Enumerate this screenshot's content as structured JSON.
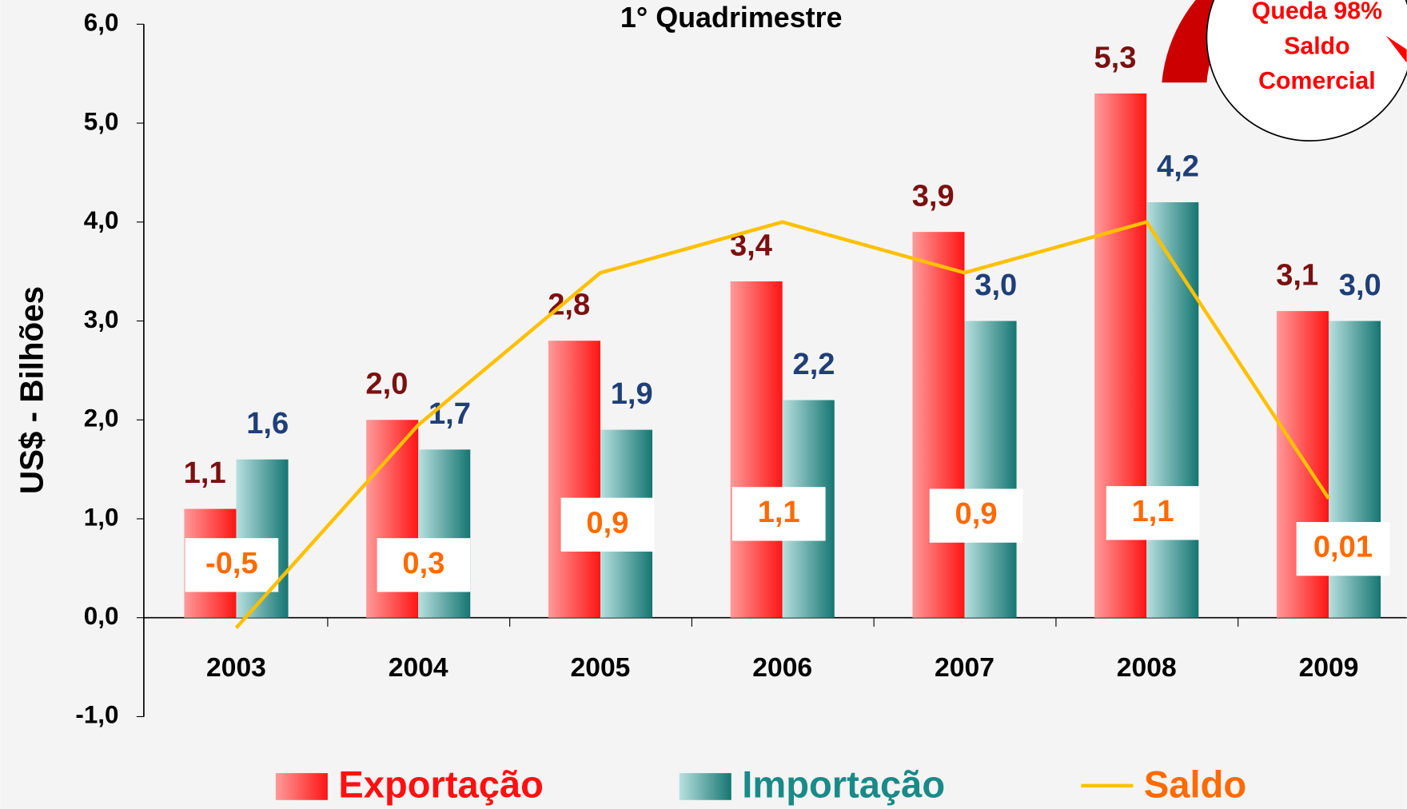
{
  "chart_data": {
    "type": "bar",
    "title": "1° Quadrimestre",
    "ylabel": "US$ - Bilhões",
    "annotation": [
      "Queda 98%",
      "Saldo",
      "Comercial"
    ],
    "categories": [
      "2003",
      "2004",
      "2005",
      "2006",
      "2007",
      "2008",
      "2009"
    ],
    "ylim": [
      -1,
      6
    ],
    "yticks": [
      {
        "value": -1,
        "label": "-1,0"
      },
      {
        "value": 0,
        "label": "0,0"
      },
      {
        "value": 1,
        "label": "1,0"
      },
      {
        "value": 2,
        "label": "2,0"
      },
      {
        "value": 3,
        "label": "3,0"
      },
      {
        "value": 4,
        "label": "4,0"
      },
      {
        "value": 5,
        "label": "5,0"
      },
      {
        "value": 6,
        "label": "6,0"
      }
    ],
    "y2lim": [
      -0.85,
      1.88
    ],
    "series": [
      {
        "name": "Exportação",
        "color": "#ff2020",
        "values": [
          1.1,
          2.0,
          2.8,
          3.4,
          3.9,
          5.3,
          3.1
        ],
        "value_labels": [
          "1,1",
          "2,0",
          "2,8",
          "3,4",
          "3,9",
          "5,3",
          "3,1"
        ]
      },
      {
        "name": "Importação",
        "color": "#1a7a78",
        "values": [
          1.6,
          1.7,
          1.9,
          2.2,
          3.0,
          4.2,
          3.0
        ],
        "value_labels": [
          "1,6",
          "1,7",
          "1,9",
          "2,2",
          "3,0",
          "4,2",
          "3,0"
        ]
      },
      {
        "name": "Saldo",
        "type": "line",
        "axis": "y2",
        "color": "#ffc000",
        "values": [
          -0.5,
          0.3,
          0.9,
          1.1,
          0.9,
          1.1,
          0.01
        ],
        "value_labels": [
          "-0,5",
          "0,3",
          "0,9",
          "1,1",
          "0,9",
          "1,1",
          "0,01"
        ]
      }
    ]
  }
}
